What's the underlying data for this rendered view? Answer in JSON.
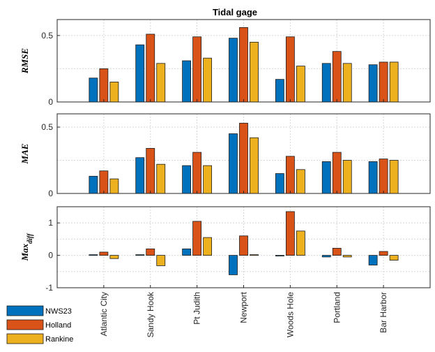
{
  "chart_data": {
    "type": "bar",
    "title": "Tidal gage",
    "categories": [
      "Atlantic City",
      "Sandy Hook",
      "Pt Judith",
      "Newport",
      "Woods Hole",
      "Portland",
      "Bar Harbor"
    ],
    "series_names": [
      "NWS23",
      "Holland",
      "Rankine"
    ],
    "colors": {
      "NWS23": "#0072BD",
      "Holland": "#D95319",
      "Rankine": "#EDB120"
    },
    "legend_position": "bottom-left",
    "grid": true,
    "panels": [
      {
        "ylabel": "RMSE",
        "ylim": [
          0,
          0.62
        ],
        "yticks": [
          0,
          0.5
        ],
        "ytick_labels": [
          "0",
          "0.5"
        ],
        "series": [
          {
            "name": "NWS23",
            "values": [
              0.18,
              0.43,
              0.31,
              0.48,
              0.17,
              0.29,
              0.28
            ]
          },
          {
            "name": "Holland",
            "values": [
              0.25,
              0.51,
              0.49,
              0.56,
              0.49,
              0.38,
              0.3
            ]
          },
          {
            "name": "Rankine",
            "values": [
              0.15,
              0.29,
              0.33,
              0.45,
              0.27,
              0.29,
              0.3
            ]
          }
        ]
      },
      {
        "ylabel": "MAE",
        "ylim": [
          0,
          0.6
        ],
        "yticks": [
          0,
          0.5
        ],
        "ytick_labels": [
          "0",
          "0.5"
        ],
        "series": [
          {
            "name": "NWS23",
            "values": [
              0.13,
              0.27,
              0.21,
              0.45,
              0.15,
              0.24,
              0.24
            ]
          },
          {
            "name": "Holland",
            "values": [
              0.17,
              0.34,
              0.31,
              0.53,
              0.28,
              0.31,
              0.26
            ]
          },
          {
            "name": "Rankine",
            "values": [
              0.11,
              0.22,
              0.21,
              0.42,
              0.18,
              0.25,
              0.25
            ]
          }
        ]
      },
      {
        "ylabel": "Max",
        "ylabel_sub": "diff",
        "ylim": [
          -1,
          1.5
        ],
        "yticks": [
          -1,
          0,
          1
        ],
        "ytick_labels": [
          "-1",
          "0",
          "1"
        ],
        "series": [
          {
            "name": "NWS23",
            "values": [
              0.02,
              0.02,
              0.2,
              -0.6,
              -0.02,
              -0.05,
              -0.3
            ]
          },
          {
            "name": "Holland",
            "values": [
              0.1,
              0.2,
              1.05,
              0.6,
              1.35,
              0.22,
              0.12
            ]
          },
          {
            "name": "Rankine",
            "values": [
              -0.1,
              -0.32,
              0.55,
              0.02,
              0.75,
              -0.05,
              -0.15
            ]
          }
        ]
      }
    ]
  }
}
